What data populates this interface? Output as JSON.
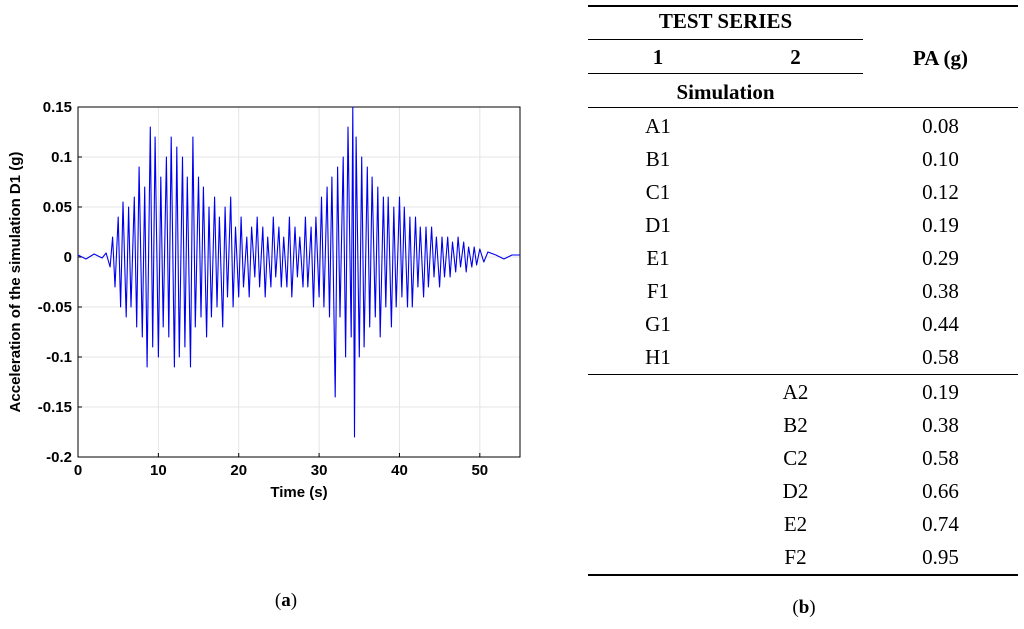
{
  "panel_a": {
    "caption_letter": "a"
  },
  "panel_b": {
    "caption_letter": "b",
    "header": {
      "group": "TEST SERIES",
      "col1": "1",
      "col2": "2",
      "col3": "PA (g)",
      "sub": "Simulation"
    },
    "rows_series1": [
      {
        "name": "A1",
        "pa": "0.08"
      },
      {
        "name": "B1",
        "pa": "0.10"
      },
      {
        "name": "C1",
        "pa": "0.12"
      },
      {
        "name": "D1",
        "pa": "0.19"
      },
      {
        "name": "E1",
        "pa": "0.29"
      },
      {
        "name": "F1",
        "pa": "0.38"
      },
      {
        "name": "G1",
        "pa": "0.44"
      },
      {
        "name": "H1",
        "pa": "0.58"
      }
    ],
    "rows_series2": [
      {
        "name": "A2",
        "pa": "0.19"
      },
      {
        "name": "B2",
        "pa": "0.38"
      },
      {
        "name": "C2",
        "pa": "0.58"
      },
      {
        "name": "D2",
        "pa": "0.66"
      },
      {
        "name": "E2",
        "pa": "0.74"
      },
      {
        "name": "F2",
        "pa": "0.95"
      }
    ]
  },
  "chart_data": {
    "type": "line",
    "title": "",
    "xlabel": "Time (s)",
    "ylabel": "Acceleration of the simulation D1 (g)",
    "xlim": [
      0,
      55
    ],
    "ylim": [
      -0.2,
      0.15
    ],
    "xticks": [
      0,
      10,
      20,
      30,
      40,
      50
    ],
    "yticks": [
      -0.2,
      -0.15,
      -0.1,
      -0.05,
      0,
      0.05,
      0.1,
      0.15
    ],
    "ytick_labels": [
      "-0.2",
      "-0.15",
      "-0.1",
      "-0.05",
      "0",
      "0.05",
      "0.1",
      "0.15"
    ],
    "grid": true,
    "line_color": "#0000ee",
    "series": [
      {
        "x": [
          0,
          1,
          2,
          3,
          3.5,
          4,
          4.3,
          4.6,
          5,
          5.3,
          5.6,
          6,
          6.3,
          6.6,
          7,
          7.3,
          7.6,
          8,
          8.3,
          8.6,
          9,
          9.3,
          9.6,
          10,
          10.3,
          10.6,
          11,
          11.3,
          11.6,
          12,
          12.3,
          12.6,
          13,
          13.3,
          13.6,
          14,
          14.3,
          14.6,
          15,
          15.3,
          15.6,
          16,
          16.3,
          16.6,
          17,
          17.3,
          17.6,
          18,
          18.3,
          18.6,
          19,
          19.3,
          19.6,
          20,
          20.3,
          20.6,
          21,
          21.3,
          21.6,
          22,
          22.3,
          22.6,
          23,
          23.3,
          23.6,
          24,
          24.3,
          24.6,
          25,
          25.3,
          25.6,
          26,
          26.3,
          26.6,
          27,
          27.3,
          27.6,
          28,
          28.3,
          28.6,
          29,
          29.3,
          29.6,
          30,
          30.3,
          30.6,
          31,
          31.3,
          31.6,
          32,
          32.3,
          32.6,
          33,
          33.3,
          33.6,
          34,
          34.2,
          34.4,
          34.6,
          35,
          35.3,
          35.6,
          36,
          36.3,
          36.6,
          37,
          37.3,
          37.6,
          38,
          38.3,
          38.6,
          39,
          39.3,
          39.6,
          40,
          40.3,
          40.6,
          41,
          41.3,
          41.6,
          42,
          42.3,
          42.6,
          43,
          43.3,
          43.6,
          44,
          44.3,
          44.6,
          45,
          45.3,
          45.6,
          46,
          46.3,
          46.6,
          47,
          47.3,
          47.6,
          48,
          48.3,
          48.6,
          49,
          49.3,
          49.6,
          50,
          50.5,
          51,
          52,
          53,
          54,
          55
        ],
        "y": [
          0.002,
          -0.002,
          0.003,
          -0.001,
          0.004,
          -0.01,
          0.02,
          -0.03,
          0.04,
          -0.05,
          0.055,
          -0.06,
          0.05,
          -0.05,
          0.06,
          -0.07,
          0.09,
          -0.08,
          0.07,
          -0.11,
          0.13,
          -0.09,
          0.12,
          -0.1,
          0.08,
          -0.07,
          0.1,
          -0.08,
          0.12,
          -0.11,
          0.11,
          -0.1,
          0.1,
          -0.09,
          0.08,
          -0.11,
          0.12,
          -0.07,
          0.08,
          -0.06,
          0.07,
          -0.08,
          0.05,
          -0.06,
          0.06,
          -0.05,
          0.04,
          -0.07,
          0.05,
          -0.04,
          0.06,
          -0.05,
          0.03,
          -0.04,
          0.04,
          -0.03,
          0.02,
          -0.04,
          0.03,
          -0.02,
          0.04,
          -0.03,
          0.03,
          -0.04,
          0.02,
          -0.03,
          0.04,
          -0.02,
          0.03,
          -0.03,
          0.02,
          -0.03,
          0.04,
          -0.04,
          0.03,
          -0.02,
          0.02,
          -0.03,
          0.04,
          -0.03,
          0.03,
          -0.05,
          0.04,
          -0.04,
          0.06,
          -0.05,
          0.07,
          -0.06,
          0.08,
          -0.14,
          0.09,
          -0.06,
          0.1,
          -0.1,
          0.13,
          -0.08,
          0.15,
          -0.18,
          0.12,
          -0.1,
          0.1,
          -0.09,
          0.09,
          -0.07,
          0.08,
          -0.06,
          0.07,
          -0.08,
          0.06,
          -0.05,
          0.06,
          -0.07,
          0.05,
          -0.05,
          0.06,
          -0.04,
          0.05,
          -0.05,
          0.04,
          -0.05,
          0.04,
          -0.03,
          0.03,
          -0.04,
          0.03,
          -0.03,
          0.03,
          -0.02,
          0.02,
          -0.03,
          0.02,
          -0.02,
          0.02,
          -0.02,
          0.015,
          -0.015,
          0.02,
          -0.01,
          0.015,
          -0.015,
          0.01,
          -0.01,
          0.01,
          -0.008,
          0.008,
          -0.005,
          0.005,
          0.002,
          -0.002,
          0.002,
          0.002
        ]
      }
    ]
  }
}
